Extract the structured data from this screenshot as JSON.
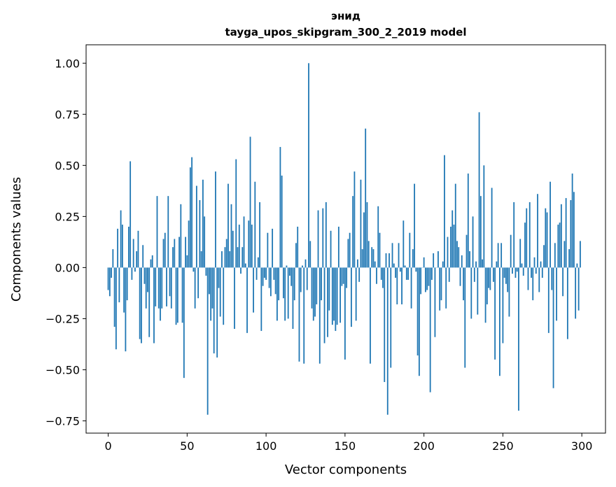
{
  "chart_data": {
    "type": "bar",
    "title": "энид",
    "subtitle": "tayga_upos_skipgram_300_2_2019 model",
    "xlabel": "Vector components",
    "ylabel": "Components values",
    "xlim": [
      -14,
      315
    ],
    "ylim": [
      -0.81,
      1.09
    ],
    "xticks": [
      0,
      50,
      100,
      150,
      200,
      250,
      300
    ],
    "yticks": [
      -0.75,
      -0.5,
      -0.25,
      0.0,
      0.25,
      0.5,
      0.75,
      1.0
    ],
    "ytick_labels": [
      "−0.75",
      "−0.50",
      "−0.25",
      "0.00",
      "0.25",
      "0.50",
      "0.75",
      "1.00"
    ],
    "xtick_labels": [
      "0",
      "50",
      "100",
      "150",
      "200",
      "250",
      "300"
    ],
    "color": "#1f77b4",
    "grid": false,
    "values": [
      -0.11,
      -0.14,
      -0.05,
      0.09,
      -0.29,
      -0.4,
      0.19,
      -0.17,
      0.28,
      0.21,
      -0.22,
      -0.41,
      -0.16,
      0.2,
      0.52,
      -0.06,
      0.14,
      -0.02,
      0.08,
      0.18,
      -0.35,
      -0.37,
      0.11,
      -0.08,
      -0.2,
      -0.12,
      -0.34,
      0.04,
      0.06,
      -0.37,
      -0.19,
      0.35,
      -0.2,
      -0.26,
      -0.2,
      0.14,
      0.17,
      -0.19,
      0.35,
      -0.14,
      -0.2,
      0.1,
      0.14,
      -0.28,
      -0.27,
      0.15,
      0.31,
      -0.27,
      -0.54,
      0.15,
      0.06,
      0.23,
      0.49,
      0.54,
      -0.02,
      -0.2,
      0.4,
      -0.15,
      0.33,
      0.08,
      0.43,
      0.25,
      -0.04,
      -0.72,
      -0.13,
      -0.26,
      -0.2,
      -0.42,
      0.47,
      -0.44,
      -0.1,
      -0.24,
      0.08,
      -0.28,
      0.1,
      0.14,
      0.41,
      0.08,
      0.31,
      0.18,
      -0.3,
      0.53,
      0.1,
      0.21,
      -0.03,
      0.1,
      0.25,
      0.02,
      -0.32,
      0.23,
      0.64,
      0.21,
      -0.22,
      0.42,
      -0.06,
      0.05,
      0.32,
      -0.31,
      -0.09,
      -0.05,
      -0.06,
      0.17,
      -0.1,
      -0.14,
      0.19,
      -0.06,
      -0.13,
      -0.26,
      -0.16,
      0.59,
      0.45,
      -0.15,
      -0.26,
      0.01,
      -0.25,
      -0.04,
      -0.09,
      -0.3,
      -0.16,
      0.12,
      0.2,
      -0.46,
      -0.12,
      0.01,
      -0.47,
      0.04,
      -0.11,
      1.0,
      0.13,
      -0.2,
      -0.26,
      -0.24,
      -0.18,
      0.28,
      -0.47,
      -0.16,
      0.29,
      -0.37,
      0.32,
      -0.34,
      -0.21,
      0.18,
      -0.28,
      -0.26,
      -0.31,
      -0.28,
      0.2,
      -0.27,
      -0.09,
      -0.08,
      -0.45,
      -0.1,
      0.14,
      0.17,
      -0.29,
      0.35,
      0.47,
      -0.26,
      0.04,
      -0.07,
      0.43,
      0.09,
      0.27,
      0.68,
      0.32,
      0.13,
      -0.47,
      0.1,
      0.09,
      0.03,
      -0.08,
      0.3,
      0.17,
      -0.06,
      -0.1,
      -0.56,
      0.07,
      -0.72,
      0.07,
      -0.49,
      0.12,
      0.02,
      -0.05,
      -0.18,
      0.12,
      -0.02,
      -0.18,
      0.23,
      0.01,
      -0.06,
      -0.06,
      0.17,
      -0.2,
      0.09,
      0.41,
      -0.02,
      -0.43,
      -0.53,
      -0.13,
      0.0,
      0.05,
      -0.12,
      -0.11,
      -0.09,
      -0.61,
      -0.06,
      0.07,
      -0.34,
      0.0,
      0.08,
      -0.21,
      -0.16,
      0.03,
      0.55,
      -0.2,
      0.15,
      -0.07,
      0.2,
      0.28,
      0.21,
      0.41,
      0.13,
      0.1,
      -0.09,
      0.06,
      -0.16,
      -0.49,
      0.16,
      0.46,
      0.08,
      -0.25,
      0.25,
      -0.07,
      0.03,
      -0.23,
      0.76,
      0.35,
      0.04,
      0.5,
      -0.27,
      -0.18,
      -0.1,
      -0.11,
      0.39,
      -0.07,
      -0.45,
      0.03,
      0.12,
      -0.53,
      0.12,
      -0.37,
      -0.05,
      -0.08,
      -0.12,
      -0.24,
      0.16,
      -0.03,
      0.32,
      -0.05,
      -0.02,
      -0.7,
      0.14,
      0.02,
      -0.04,
      0.22,
      0.29,
      -0.11,
      0.32,
      -0.05,
      -0.16,
      0.05,
      -0.03,
      0.36,
      -0.12,
      0.03,
      -0.05,
      0.11,
      0.29,
      0.27,
      -0.32,
      0.42,
      -0.11,
      -0.59,
      0.12,
      -0.26,
      0.21,
      0.22,
      0.31,
      -0.14,
      0.13,
      0.34,
      -0.35,
      0.09,
      0.33,
      0.46,
      0.37,
      -0.25,
      0.02,
      -0.21,
      0.13
    ]
  }
}
